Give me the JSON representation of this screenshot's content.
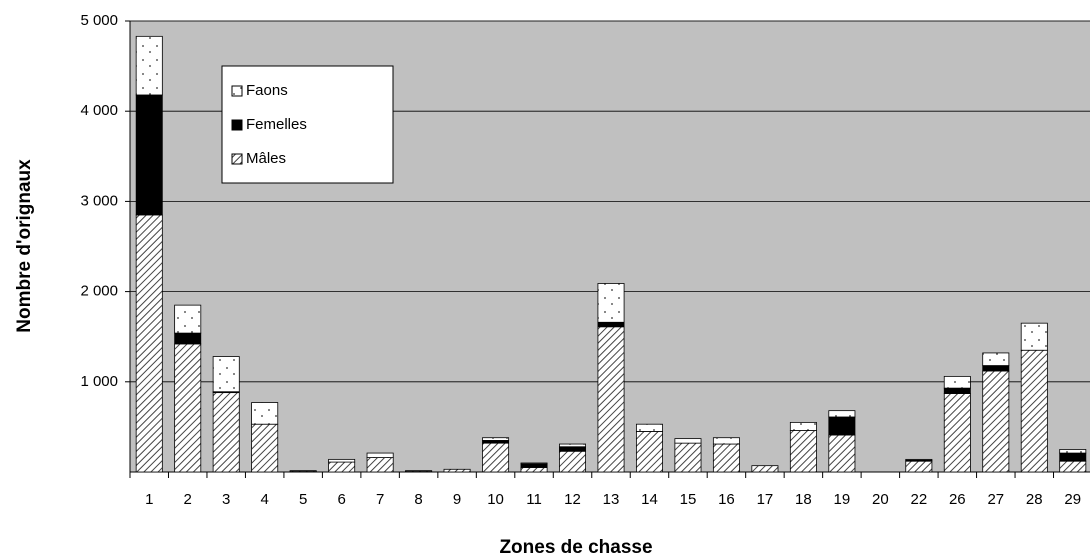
{
  "chart_data": {
    "type": "bar",
    "stacked": true,
    "x_label": "Zones de chasse",
    "y_label": "Nombre d'orignaux",
    "categories": [
      "1",
      "2",
      "3",
      "4",
      "5",
      "6",
      "7",
      "8",
      "9",
      "10",
      "11",
      "12",
      "13",
      "14",
      "15",
      "16",
      "17",
      "18",
      "19",
      "20",
      "22",
      "26",
      "27",
      "28",
      "29"
    ],
    "series": [
      {
        "name": "Mâles",
        "color": "#ffffff",
        "pattern": "hatch",
        "values": [
          2850,
          1420,
          880,
          530,
          10,
          110,
          160,
          10,
          30,
          320,
          50,
          230,
          1610,
          450,
          320,
          310,
          70,
          460,
          410,
          0,
          120,
          870,
          1120,
          1350,
          120
        ]
      },
      {
        "name": "Femelles",
        "color": "#000000",
        "values": [
          1330,
          120,
          10,
          0,
          5,
          0,
          0,
          5,
          0,
          30,
          40,
          50,
          50,
          0,
          0,
          0,
          0,
          0,
          200,
          0,
          10,
          60,
          60,
          0,
          90
        ]
      },
      {
        "name": "Faons",
        "color": "#ffffff",
        "pattern": "dots",
        "values": [
          650,
          310,
          390,
          240,
          0,
          30,
          50,
          0,
          0,
          30,
          10,
          30,
          430,
          80,
          50,
          70,
          0,
          90,
          70,
          0,
          10,
          130,
          140,
          300,
          40
        ]
      }
    ],
    "ylim": [
      0,
      5000
    ],
    "yticks": [
      {
        "value": 1000,
        "label": "1 000"
      },
      {
        "value": 2000,
        "label": "2 000"
      },
      {
        "value": 3000,
        "label": "3 000"
      },
      {
        "value": 4000,
        "label": "4 000"
      },
      {
        "value": 5000,
        "label": "5 000"
      }
    ],
    "grid": true,
    "plot_background": "#c0c0c0",
    "legend": "upper left"
  }
}
